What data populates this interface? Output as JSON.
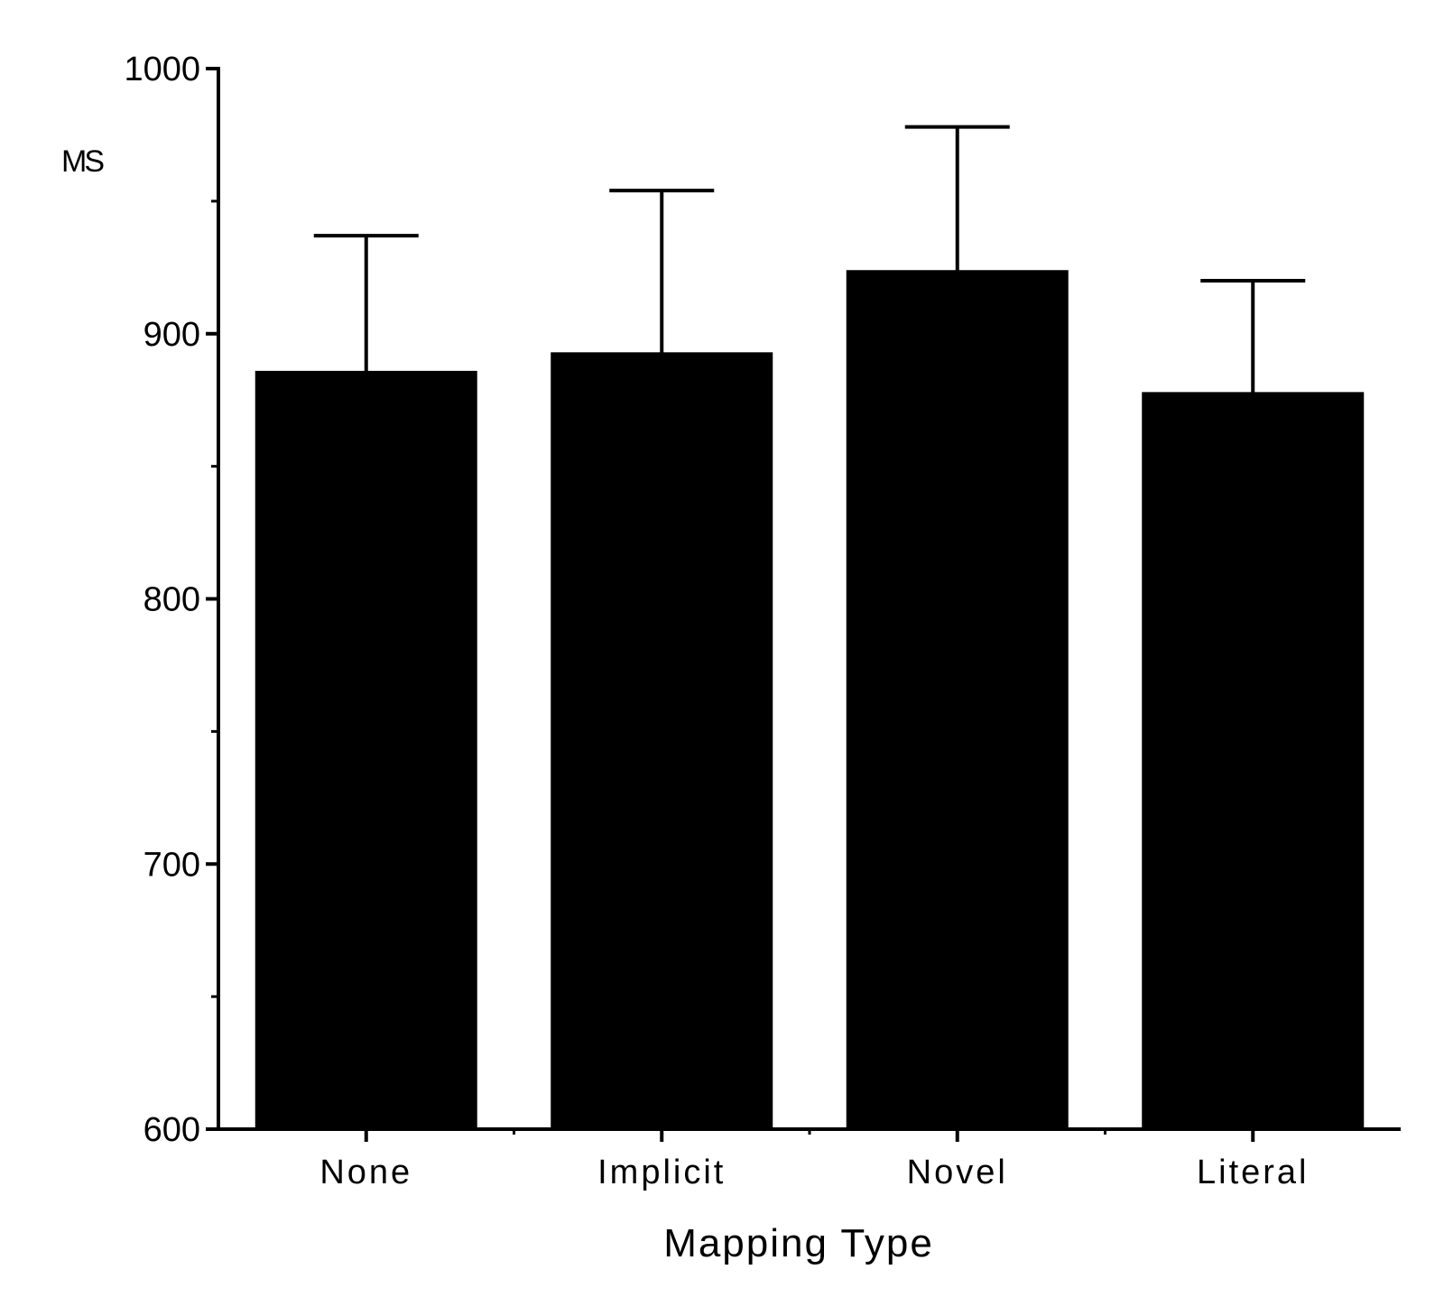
{
  "chart_data": {
    "type": "bar",
    "title": "",
    "xlabel": "Mapping Type",
    "ylabel": "MS",
    "categories": [
      "None",
      "Implicit",
      "Novel",
      "Literal"
    ],
    "values": [
      886,
      893,
      924,
      878
    ],
    "error_upper": [
      937,
      954,
      978,
      920
    ],
    "ylim": [
      600,
      1000
    ],
    "yticks": [
      600,
      700,
      800,
      900,
      1000
    ],
    "ytick_labels": [
      "600",
      "700",
      "800",
      "900",
      "1000"
    ],
    "grid": false,
    "legend": "none",
    "colors": {
      "bar": "#000000",
      "axis": "#000000",
      "background": "#ffffff"
    }
  }
}
